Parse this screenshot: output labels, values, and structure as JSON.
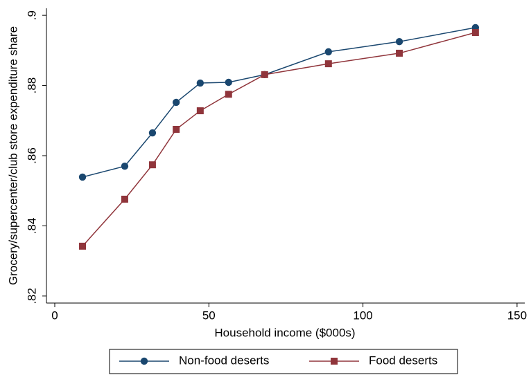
{
  "chart_data": {
    "type": "line",
    "x_label": "Household income ($000s)",
    "y_label": "Grocery/supercenter/club store expenditure share",
    "series": [
      {
        "name": "Non-food deserts",
        "color": "#1a476f",
        "marker": "circle",
        "x": [
          9.0,
          22.7,
          31.7,
          39.4,
          47.2,
          56.4,
          68.1,
          88.8,
          111.8,
          136.5
        ],
        "values": [
          0.8539,
          0.857,
          0.8665,
          0.8752,
          0.8807,
          0.8809,
          0.8831,
          0.8896,
          0.8925,
          0.8965
        ]
      },
      {
        "name": "Food deserts",
        "color": "#90353b",
        "marker": "square",
        "x": [
          9.0,
          22.7,
          31.7,
          39.4,
          47.2,
          56.4,
          68.1,
          88.8,
          111.8,
          136.5
        ],
        "values": [
          0.8342,
          0.8476,
          0.8574,
          0.8675,
          0.8728,
          0.8775,
          0.8831,
          0.8862,
          0.8892,
          0.8951
        ]
      }
    ],
    "xlim": [
      -2.7,
      152.5
    ],
    "xticks": [
      0,
      50,
      100,
      150
    ],
    "ylim": [
      0.818,
      0.902
    ],
    "yticks": [
      {
        "value": 0.82,
        "label": ".82"
      },
      {
        "value": 0.84,
        "label": ".84"
      },
      {
        "value": 0.86,
        "label": ".86"
      },
      {
        "value": 0.88,
        "label": ".88"
      },
      {
        "value": 0.9,
        "label": ".9"
      }
    ],
    "grid": false,
    "legend": "bottom"
  }
}
